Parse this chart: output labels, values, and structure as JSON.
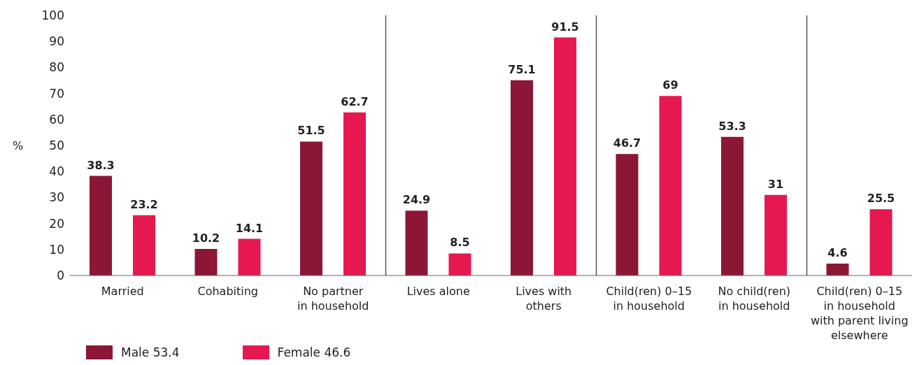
{
  "chart_data": {
    "type": "bar",
    "ylabel": "%",
    "categories": [
      "Married",
      "Cohabiting",
      "No partner\nin household",
      "Lives alone",
      "Lives with\nothers",
      "Child(ren) 0–15\nin household",
      "No child(ren)\nin household",
      "Child(ren) 0–15\nin household\nwith parent living\nelsewhere"
    ],
    "series": [
      {
        "name": "Male 53.4",
        "color": "#8b1636",
        "values": [
          38.3,
          10.2,
          51.5,
          24.9,
          75.1,
          46.7,
          53.3,
          4.6
        ]
      },
      {
        "name": "Female 46.6",
        "color": "#e5194f",
        "values": [
          23.2,
          14.1,
          62.7,
          8.5,
          91.5,
          69,
          31,
          25.5
        ]
      }
    ],
    "ylim": [
      0,
      100
    ],
    "yticks": [
      0,
      10,
      20,
      30,
      40,
      50,
      60,
      70,
      80,
      90,
      100
    ],
    "data_labels": true,
    "grid": false,
    "legend": "bottom left"
  }
}
